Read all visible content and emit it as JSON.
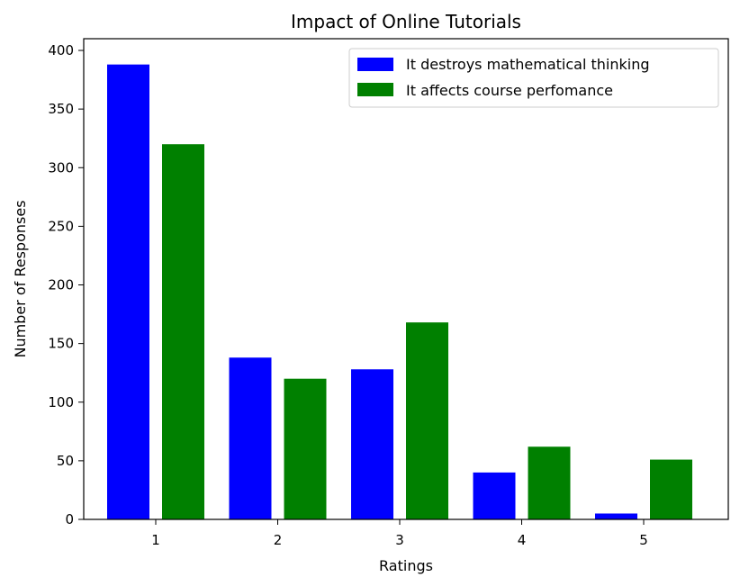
{
  "chart_data": {
    "type": "bar",
    "title": "Impact of Online Tutorials",
    "xlabel": "Ratings",
    "ylabel": "Number of Responses",
    "categories": [
      "1",
      "2",
      "3",
      "4",
      "5"
    ],
    "series": [
      {
        "name": "It destroys mathematical thinking",
        "color": "#0000ff",
        "values": [
          388,
          138,
          128,
          40,
          5
        ]
      },
      {
        "name": "It affects course perfomance",
        "color": "#008000",
        "values": [
          320,
          120,
          168,
          62,
          51
        ]
      }
    ],
    "ylim": [
      0,
      410
    ],
    "yticks": [
      0,
      50,
      100,
      150,
      200,
      250,
      300,
      350,
      400
    ],
    "grid": false,
    "legend_position": "top-right"
  }
}
